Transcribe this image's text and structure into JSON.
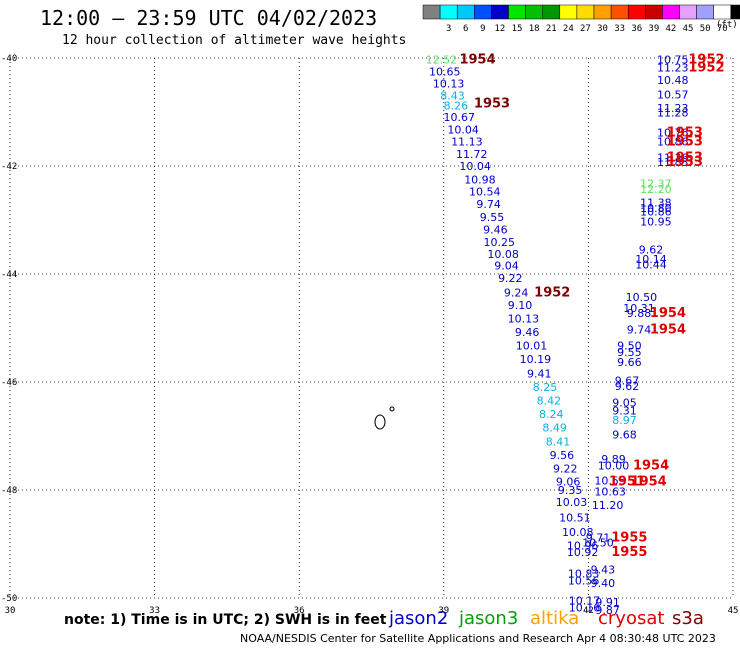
{
  "header": {
    "title": "12:00 — 23:59 UTC 04/02/2023",
    "subtitle": "12 hour collection of altimeter wave heights"
  },
  "legend": {
    "unit": "(ft)",
    "bins": [
      {
        "label": "",
        "color": "#808080"
      },
      {
        "label": "3",
        "color": "#00ffff"
      },
      {
        "label": "6",
        "color": "#00c8ff"
      },
      {
        "label": "9",
        "color": "#0050ff"
      },
      {
        "label": "12",
        "color": "#0000c8"
      },
      {
        "label": "15",
        "color": "#00e600"
      },
      {
        "label": "18",
        "color": "#00c000"
      },
      {
        "label": "21",
        "color": "#009600"
      },
      {
        "label": "24",
        "color": "#ffff00"
      },
      {
        "label": "27",
        "color": "#ffdc00"
      },
      {
        "label": "30",
        "color": "#ffa000"
      },
      {
        "label": "33",
        "color": "#ff5000"
      },
      {
        "label": "36",
        "color": "#ff0000"
      },
      {
        "label": "39",
        "color": "#c80000"
      },
      {
        "label": "42",
        "color": "#ff00ff"
      },
      {
        "label": "45",
        "color": "#e6a0ff"
      },
      {
        "label": "50",
        "color": "#a0a0ff"
      },
      {
        "label": "70",
        "color": "#ffffff"
      },
      {
        "label": "",
        "color": "#000000"
      }
    ]
  },
  "note": "note: 1) Time is in UTC; 2) SWH is in feet",
  "satellites": [
    {
      "name": "jason2",
      "color": "#0000c8"
    },
    {
      "name": "jason3",
      "color": "#00a000"
    },
    {
      "name": "altika",
      "color": "#ffa000"
    },
    {
      "name": "cryosat",
      "color": "#e00000"
    },
    {
      "name": "s3a",
      "color": "#800000"
    }
  ],
  "footer": "NOAA/NESDIS Center for Satellite Applications and Research    Apr  4 08:30:48 UTC 2023",
  "chart_data": {
    "type": "scatter",
    "xlim": [
      30,
      45
    ],
    "ylim": [
      -50,
      -40
    ],
    "xticks": [
      "30",
      "33",
      "36",
      "39",
      "42",
      "45"
    ],
    "yticks": [
      "-40",
      "-42",
      "-44",
      "-46",
      "-48",
      "-50"
    ],
    "grid": true,
    "colors": {
      "light_green": "#5ce65c",
      "cyan": "#00b4e6",
      "blue": "#0000c8",
      "dark_red": "#800000",
      "red": "#e00000"
    },
    "track1": [
      {
        "x": 38.95,
        "y": -40.1,
        "v": "12.52",
        "c": "light_green"
      },
      {
        "x": 39.02,
        "y": -40.32,
        "v": "10.65",
        "c": "blue"
      },
      {
        "x": 39.1,
        "y": -40.55,
        "v": "10.13",
        "c": "blue"
      },
      {
        "x": 39.18,
        "y": -40.77,
        "v": "8.43",
        "c": "cyan"
      },
      {
        "x": 39.25,
        "y": -40.95,
        "v": "8.26",
        "c": "cyan"
      },
      {
        "x": 39.32,
        "y": -41.17,
        "v": "10.67",
        "c": "blue"
      },
      {
        "x": 39.4,
        "y": -41.4,
        "v": "10.04",
        "c": "blue"
      },
      {
        "x": 39.48,
        "y": -41.62,
        "v": "11.13",
        "c": "blue"
      },
      {
        "x": 39.58,
        "y": -41.85,
        "v": "11.72",
        "c": "blue"
      },
      {
        "x": 39.65,
        "y": -42.07,
        "v": "10.04",
        "c": "blue"
      },
      {
        "x": 39.75,
        "y": -42.32,
        "v": "10.98",
        "c": "blue"
      },
      {
        "x": 39.85,
        "y": -42.55,
        "v": "10.54",
        "c": "blue"
      },
      {
        "x": 39.93,
        "y": -42.78,
        "v": "9.74",
        "c": "blue"
      },
      {
        "x": 40.0,
        "y": -43.02,
        "v": "9.55",
        "c": "blue"
      },
      {
        "x": 40.07,
        "y": -43.25,
        "v": "9.46",
        "c": "blue"
      },
      {
        "x": 40.15,
        "y": -43.48,
        "v": "10.25",
        "c": "blue"
      },
      {
        "x": 40.23,
        "y": -43.7,
        "v": "10.08",
        "c": "blue"
      },
      {
        "x": 40.3,
        "y": -43.92,
        "v": "9.04",
        "c": "blue"
      },
      {
        "x": 40.38,
        "y": -44.15,
        "v": "9.22",
        "c": "blue"
      },
      {
        "x": 40.5,
        "y": -44.42,
        "v": "9.24",
        "c": "blue"
      },
      {
        "x": 40.58,
        "y": -44.65,
        "v": "9.10",
        "c": "blue"
      },
      {
        "x": 40.65,
        "y": -44.9,
        "v": "10.13",
        "c": "blue"
      },
      {
        "x": 40.73,
        "y": -45.15,
        "v": "9.46",
        "c": "blue"
      },
      {
        "x": 40.82,
        "y": -45.4,
        "v": "10.01",
        "c": "blue"
      },
      {
        "x": 40.9,
        "y": -45.65,
        "v": "10.19",
        "c": "blue"
      },
      {
        "x": 40.98,
        "y": -45.92,
        "v": "9.41",
        "c": "blue"
      },
      {
        "x": 41.1,
        "y": -46.17,
        "v": "8.25",
        "c": "cyan"
      },
      {
        "x": 41.18,
        "y": -46.42,
        "v": "8.42",
        "c": "cyan"
      },
      {
        "x": 41.23,
        "y": -46.67,
        "v": "8.24",
        "c": "cyan"
      },
      {
        "x": 41.3,
        "y": -46.92,
        "v": "8.49",
        "c": "cyan"
      },
      {
        "x": 41.37,
        "y": -47.18,
        "v": "8.41",
        "c": "cyan"
      },
      {
        "x": 41.45,
        "y": -47.43,
        "v": "9.56",
        "c": "blue"
      },
      {
        "x": 41.52,
        "y": -47.68,
        "v": "9.22",
        "c": "blue"
      },
      {
        "x": 41.58,
        "y": -47.92,
        "v": "9.06",
        "c": "blue"
      },
      {
        "x": 41.62,
        "y": -48.07,
        "v": "9.35",
        "c": "blue"
      },
      {
        "x": 41.65,
        "y": -48.3,
        "v": "10.03",
        "c": "blue"
      },
      {
        "x": 41.72,
        "y": -48.58,
        "v": "10.51",
        "c": "blue"
      },
      {
        "x": 41.78,
        "y": -48.85,
        "v": "10.08",
        "c": "blue"
      },
      {
        "x": 41.88,
        "y": -49.1,
        "v": "10.96",
        "c": "blue"
      },
      {
        "x": 41.88,
        "y": -49.22,
        "v": "10.92",
        "c": "blue"
      },
      {
        "x": 41.9,
        "y": -49.62,
        "v": "10.83",
        "c": "blue"
      },
      {
        "x": 41.9,
        "y": -49.75,
        "v": "10.56",
        "c": "blue"
      },
      {
        "x": 41.92,
        "y": -50.12,
        "v": "10.17",
        "c": "blue"
      },
      {
        "x": 41.92,
        "y": -50.25,
        "v": "10.16",
        "c": "blue"
      }
    ],
    "track2": [
      {
        "x": 43.75,
        "y": -40.1,
        "v": "10.75",
        "c": "blue"
      },
      {
        "x": 43.75,
        "y": -40.25,
        "v": "11.23",
        "c": "blue"
      },
      {
        "x": 43.75,
        "y": -40.48,
        "v": "10.48",
        "c": "blue"
      },
      {
        "x": 43.75,
        "y": -40.75,
        "v": "10.57",
        "c": "blue"
      },
      {
        "x": 43.75,
        "y": -41.0,
        "v": "11.23",
        "c": "blue"
      },
      {
        "x": 43.75,
        "y": -41.08,
        "v": "11.28",
        "c": "blue"
      },
      {
        "x": 43.75,
        "y": -41.45,
        "v": "10.76",
        "c": "blue"
      },
      {
        "x": 43.75,
        "y": -41.62,
        "v": "10.86",
        "c": "blue"
      },
      {
        "x": 43.75,
        "y": -41.92,
        "v": "11.36",
        "c": "blue"
      },
      {
        "x": 43.75,
        "y": -42.0,
        "v": "11.83",
        "c": "blue"
      },
      {
        "x": 43.4,
        "y": -42.4,
        "v": "12.37",
        "c": "light_green"
      },
      {
        "x": 43.4,
        "y": -42.5,
        "v": "12.20",
        "c": "light_green"
      },
      {
        "x": 43.4,
        "y": -42.75,
        "v": "11.38",
        "c": "blue"
      },
      {
        "x": 43.4,
        "y": -42.85,
        "v": "10.80",
        "c": "blue"
      },
      {
        "x": 43.4,
        "y": -42.92,
        "v": "10.86",
        "c": "blue"
      },
      {
        "x": 43.4,
        "y": -43.1,
        "v": "10.95",
        "c": "blue"
      },
      {
        "x": 43.3,
        "y": -43.62,
        "v": "9.62",
        "c": "blue"
      },
      {
        "x": 43.3,
        "y": -43.8,
        "v": "10.14",
        "c": "blue"
      },
      {
        "x": 43.3,
        "y": -43.9,
        "v": "10.44",
        "c": "blue"
      },
      {
        "x": 43.1,
        "y": -44.5,
        "v": "10.50",
        "c": "blue"
      },
      {
        "x": 43.05,
        "y": -44.7,
        "v": "10.31",
        "c": "blue"
      },
      {
        "x": 43.05,
        "y": -44.8,
        "v": "9.88",
        "c": "blue"
      },
      {
        "x": 43.05,
        "y": -45.1,
        "v": "9.74",
        "c": "blue"
      },
      {
        "x": 42.85,
        "y": -45.4,
        "v": "9.50",
        "c": "blue"
      },
      {
        "x": 42.85,
        "y": -45.52,
        "v": "9.55",
        "c": "blue"
      },
      {
        "x": 42.85,
        "y": -45.7,
        "v": "9.66",
        "c": "blue"
      },
      {
        "x": 42.8,
        "y": -46.05,
        "v": "9.67",
        "c": "blue"
      },
      {
        "x": 42.8,
        "y": -46.15,
        "v": "9.62",
        "c": "blue"
      },
      {
        "x": 42.75,
        "y": -46.45,
        "v": "9.05",
        "c": "blue"
      },
      {
        "x": 42.75,
        "y": -46.6,
        "v": "9.31",
        "c": "blue"
      },
      {
        "x": 42.75,
        "y": -46.78,
        "v": "8.97",
        "c": "cyan"
      },
      {
        "x": 42.75,
        "y": -47.05,
        "v": "9.68",
        "c": "blue"
      },
      {
        "x": 42.52,
        "y": -47.5,
        "v": "9.89",
        "c": "blue"
      },
      {
        "x": 42.52,
        "y": -47.62,
        "v": "10.00",
        "c": "blue"
      },
      {
        "x": 42.45,
        "y": -47.9,
        "v": "10.55",
        "c": "blue"
      },
      {
        "x": 42.45,
        "y": -48.1,
        "v": "10.63",
        "c": "blue"
      },
      {
        "x": 42.4,
        "y": -48.35,
        "v": "11.20",
        "c": "blue"
      },
      {
        "x": 42.2,
        "y": -48.95,
        "v": "9.71",
        "c": "blue"
      },
      {
        "x": 42.2,
        "y": -49.05,
        "v": "10.50",
        "c": "blue"
      },
      {
        "x": 42.3,
        "y": -49.55,
        "v": "9.43",
        "c": "blue"
      },
      {
        "x": 42.3,
        "y": -49.8,
        "v": "9.40",
        "c": "blue"
      },
      {
        "x": 42.4,
        "y": -50.15,
        "v": "9.91",
        "c": "blue"
      },
      {
        "x": 42.4,
        "y": -50.3,
        "v": "9.87",
        "c": "blue"
      }
    ],
    "time_labels": [
      {
        "x": 39.7,
        "y": -40.1,
        "v": "1954",
        "c": "dark_red"
      },
      {
        "x": 40.0,
        "y": -40.92,
        "v": "1953",
        "c": "dark_red"
      },
      {
        "x": 41.25,
        "y": -44.42,
        "v": "1952",
        "c": "dark_red"
      },
      {
        "x": 44.45,
        "y": -40.1,
        "v": "1952",
        "c": "red"
      },
      {
        "x": 44.45,
        "y": -40.25,
        "v": "1952",
        "c": "red"
      },
      {
        "x": 44.0,
        "y": -41.45,
        "v": "1953",
        "c": "red"
      },
      {
        "x": 44.0,
        "y": -41.62,
        "v": "1953",
        "c": "red"
      },
      {
        "x": 44.0,
        "y": -41.92,
        "v": "1953",
        "c": "red"
      },
      {
        "x": 44.0,
        "y": -42.0,
        "v": "1953",
        "c": "red"
      },
      {
        "x": 43.65,
        "y": -44.8,
        "v": "1954",
        "c": "red"
      },
      {
        "x": 43.65,
        "y": -45.1,
        "v": "1954",
        "c": "red"
      },
      {
        "x": 43.3,
        "y": -47.62,
        "v": "1954",
        "c": "red"
      },
      {
        "x": 42.8,
        "y": -47.92,
        "v": "1951",
        "c": "red"
      },
      {
        "x": 43.25,
        "y": -47.92,
        "v": "1954",
        "c": "red"
      },
      {
        "x": 42.85,
        "y": -48.95,
        "v": "1955",
        "c": "red"
      },
      {
        "x": 42.85,
        "y": -49.22,
        "v": "1955",
        "c": "red"
      }
    ]
  }
}
